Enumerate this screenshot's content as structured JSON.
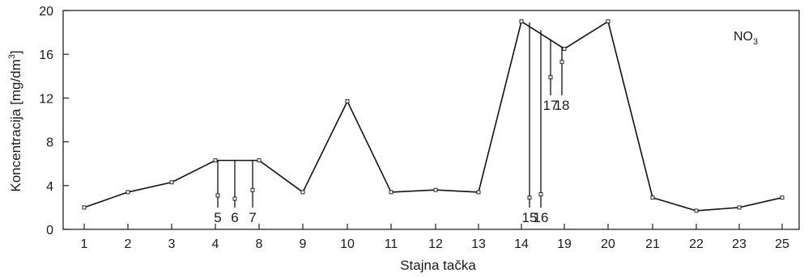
{
  "chart_data": {
    "type": "line",
    "xlabel": "Stajna tačka",
    "ylabel_main": "Koncentracija [mg/dm",
    "ylabel_sup": "3",
    "ylabel_end": "]",
    "series_label_main": "NO",
    "series_label_sub": "3",
    "ylim": [
      0,
      20
    ],
    "yticks": [
      "0",
      "4",
      "8",
      "12",
      "16",
      "20"
    ],
    "grid": false,
    "categories": [
      "1",
      "2",
      "3",
      "4",
      "8",
      "9",
      "10",
      "11",
      "12",
      "13",
      "14",
      "19",
      "20",
      "21",
      "22",
      "23",
      "25"
    ],
    "values": [
      2.0,
      3.4,
      4.3,
      6.3,
      6.3,
      3.4,
      11.7,
      3.4,
      3.6,
      3.4,
      19.0,
      16.5,
      19.0,
      2.9,
      1.7,
      2.0,
      2.9
    ],
    "side_points": [
      {
        "label": "5",
        "value": 3.1
      },
      {
        "label": "6",
        "value": 2.8
      },
      {
        "label": "7",
        "value": 3.6
      },
      {
        "label": "15",
        "value": 2.9
      },
      {
        "label": "16",
        "value": 3.2
      },
      {
        "label": "17",
        "value": 13.9
      },
      {
        "label": "18",
        "value": 15.3
      }
    ]
  }
}
